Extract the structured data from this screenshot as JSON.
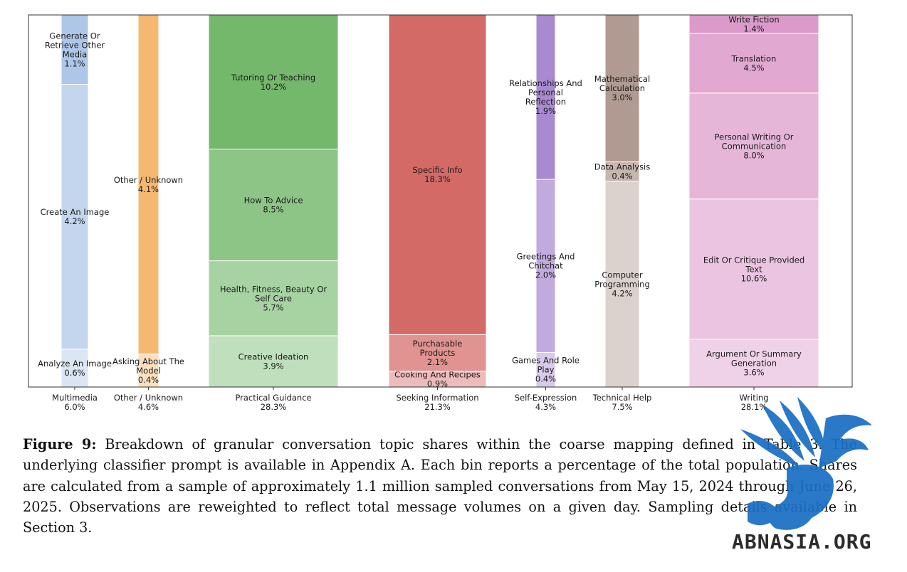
{
  "chart_data": {
    "type": "bar",
    "subtype": "stacked-variable-width",
    "title": "",
    "xlabel": "",
    "ylabel": "",
    "ylim": [
      0,
      100
    ],
    "grid": false,
    "legend": "none",
    "categories": [
      {
        "name": "Multimedia",
        "share": "6.0%",
        "color": "#aec7e8",
        "segments": [
          {
            "label": "Analyze An Image",
            "value": 0.6,
            "pct": "0.6%"
          },
          {
            "label": "Create An Image",
            "value": 4.2,
            "pct": "4.2%"
          },
          {
            "label": "Generate Or Retrieve Other Media",
            "value": 1.1,
            "pct": "1.1%"
          }
        ]
      },
      {
        "name": "Other / Unknown",
        "share": "4.6%",
        "color": "#f5b870",
        "segments": [
          {
            "label": "Asking About The Model",
            "value": 0.4,
            "pct": "0.4%"
          },
          {
            "label": "Other / Unknown",
            "value": 4.1,
            "pct": "4.1%"
          }
        ]
      },
      {
        "name": "Practical Guidance",
        "share": "28.3%",
        "color": "#74b86c",
        "segments": [
          {
            "label": "Creative Ideation",
            "value": 3.9,
            "pct": "3.9%"
          },
          {
            "label": "Health, Fitness, Beauty Or Self Care",
            "value": 5.7,
            "pct": "5.7%"
          },
          {
            "label": "How To Advice",
            "value": 8.5,
            "pct": "8.5%"
          },
          {
            "label": "Tutoring Or Teaching",
            "value": 10.2,
            "pct": "10.2%"
          }
        ]
      },
      {
        "name": "Seeking Information",
        "share": "21.3%",
        "color": "#d46a66",
        "segments": [
          {
            "label": "Cooking And Recipes",
            "value": 0.9,
            "pct": "0.9%"
          },
          {
            "label": "Purchasable Products",
            "value": 2.1,
            "pct": "2.1%"
          },
          {
            "label": "Specific Info",
            "value": 18.3,
            "pct": "18.3%"
          }
        ]
      },
      {
        "name": "Self-Expression",
        "share": "4.3%",
        "color": "#a98ad0",
        "segments": [
          {
            "label": "Games And Role Play",
            "value": 0.4,
            "pct": "0.4%"
          },
          {
            "label": "Greetings And Chitchat",
            "value": 2.0,
            "pct": "2.0%"
          },
          {
            "label": "Relationships And Personal Reflection",
            "value": 1.9,
            "pct": "1.9%"
          }
        ]
      },
      {
        "name": "Technical Help",
        "share": "7.5%",
        "color": "#b09a92",
        "segments": [
          {
            "label": "Computer Programming",
            "value": 4.2,
            "pct": "4.2%"
          },
          {
            "label": "Data Analysis",
            "value": 0.4,
            "pct": "0.4%"
          },
          {
            "label": "Mathematical Calculation",
            "value": 3.0,
            "pct": "3.0%"
          }
        ]
      },
      {
        "name": "Writing",
        "share": "28.1%",
        "color": "#dc9acb",
        "segments": [
          {
            "label": "Argument Or Summary Generation",
            "value": 3.6,
            "pct": "3.6%"
          },
          {
            "label": "Edit Or Critique Provided Text",
            "value": 10.6,
            "pct": "10.6%"
          },
          {
            "label": "Personal Writing Or Communication",
            "value": 8.0,
            "pct": "8.0%"
          },
          {
            "label": "Translation",
            "value": 4.5,
            "pct": "4.5%"
          },
          {
            "label": "Write Fiction",
            "value": 1.4,
            "pct": "1.4%"
          }
        ]
      }
    ]
  },
  "caption": {
    "label": "Figure 9:",
    "text": "Breakdown of granular conversation topic shares within the coarse mapping defined in Table 3. The underlying classifier prompt is available in Appendix A. Each bin reports a percentage of the total population. Shares are calculated from a sample of approximately 1.1 million sampled conversations from May 15, 2024 through June 26, 2025. Observations are reweighted to reflect total message volumes on a given day. Sampling details available in Section 3."
  },
  "watermark": {
    "text": "ABNASIA.ORG",
    "color": "#1a6fc4",
    "icon": "winged-lion-icon"
  }
}
